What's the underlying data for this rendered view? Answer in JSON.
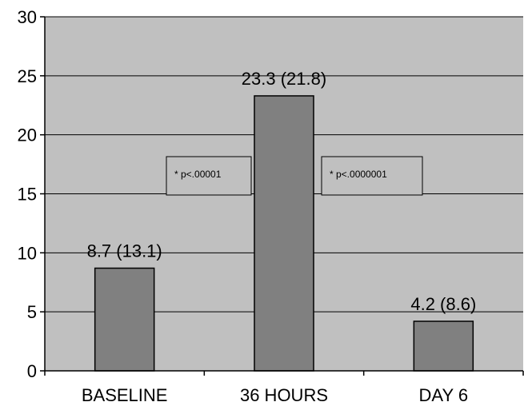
{
  "chart_data": {
    "type": "bar",
    "categories": [
      "BASELINE",
      "36 HOURS",
      "DAY 6"
    ],
    "values": [
      8.7,
      23.3,
      4.2
    ],
    "data_labels": [
      "8.7 (13.1)",
      "23.3 (21.8)",
      "4.2 (8.6)"
    ],
    "yticks": [
      "0",
      "5",
      "10",
      "15",
      "20",
      "25",
      "30"
    ],
    "ylim": [
      0,
      30
    ],
    "grid": true,
    "annotations": [
      "* p<.00001",
      "* p<.0000001"
    ],
    "colors": {
      "plot_background": "#c0c0c0",
      "bar": "#808080",
      "gridline": "#000000",
      "annotation_box": "#c0c0c0"
    }
  }
}
